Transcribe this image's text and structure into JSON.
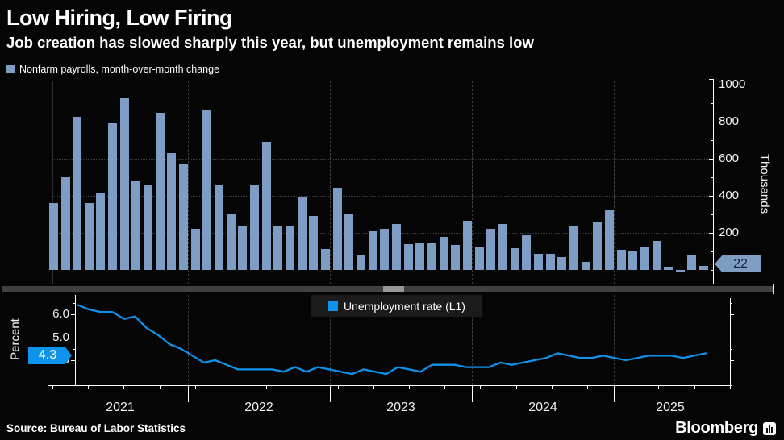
{
  "header": {
    "title": "Low Hiring, Low Firing",
    "subtitle": "Job creation has slowed sharply this year, but unemployment remains low"
  },
  "top_chart": {
    "legend": "Nonfarm payrolls, month-over-month change",
    "axis_label": "Thousands",
    "badge": "22"
  },
  "bottom_chart": {
    "legend": "Unemployment rate (L1)",
    "axis_label": "Percent",
    "badge": "4.3"
  },
  "x_axis": {
    "years": [
      "2021",
      "2022",
      "2023",
      "2024",
      "2025"
    ]
  },
  "footer": {
    "source": "Source: Bureau of Labor Statistics",
    "brand": "Bloomberg"
  },
  "colors": {
    "background": "#050505",
    "bar": "#7e9dc4",
    "accent_blue": "#0f93ea",
    "badge_22_text": "#17253c",
    "grid": "#3e3e3e",
    "text": "#ffffff",
    "splitter": "#404040",
    "splitter_handle": "#969696",
    "legend_box_bg": "#1b1b1b"
  },
  "chart_data": [
    {
      "type": "bar",
      "title": "Nonfarm payrolls, month-over-month change",
      "ylabel": "Thousands",
      "x_start": "2021-01",
      "x_end": "2025-08",
      "frequency": "monthly",
      "yticks": [
        200,
        400,
        600,
        800,
        1000
      ],
      "ylim": [
        -60,
        1060
      ],
      "grid": "dotted-horizontal, dashed-year-dividers",
      "legend_position": "top-left",
      "last_value_label": "22",
      "values": [
        360,
        500,
        825,
        360,
        415,
        790,
        930,
        480,
        460,
        850,
        630,
        570,
        220,
        860,
        460,
        300,
        240,
        455,
        690,
        240,
        235,
        390,
        290,
        115,
        445,
        300,
        80,
        210,
        220,
        250,
        140,
        150,
        150,
        180,
        135,
        265,
        120,
        222,
        246,
        118,
        193,
        87,
        88,
        71,
        240,
        44,
        261,
        323,
        111,
        102,
        120,
        158,
        19,
        -13,
        79,
        22
      ]
    },
    {
      "type": "line",
      "title": "Unemployment rate (L1)",
      "ylabel": "Percent",
      "x_start": "2021-01",
      "x_end": "2025-08",
      "frequency": "monthly",
      "yticks": [
        4.0,
        5.0,
        6.0
      ],
      "ytick_labels": [
        "4.0",
        "5.0",
        "6.0"
      ],
      "ylim": [
        2.9,
        6.8
      ],
      "legend_position": "top-center",
      "last_value_label": "4.3",
      "values": [
        6.4,
        6.2,
        6.1,
        6.1,
        5.8,
        5.9,
        5.4,
        5.1,
        4.7,
        4.5,
        4.2,
        3.9,
        4.0,
        3.8,
        3.6,
        3.6,
        3.6,
        3.6,
        3.5,
        3.7,
        3.5,
        3.7,
        3.6,
        3.5,
        3.4,
        3.6,
        3.5,
        3.4,
        3.7,
        3.6,
        3.5,
        3.8,
        3.8,
        3.8,
        3.7,
        3.7,
        3.7,
        3.9,
        3.8,
        3.9,
        4.0,
        4.1,
        4.3,
        4.2,
        4.1,
        4.1,
        4.2,
        4.1,
        4.0,
        4.1,
        4.2,
        4.2,
        4.2,
        4.1,
        4.2,
        4.3
      ]
    }
  ]
}
